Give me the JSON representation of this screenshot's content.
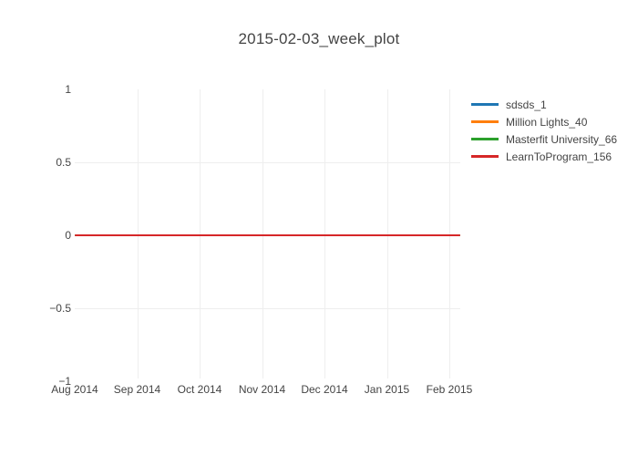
{
  "title": "2015-02-03_week_plot",
  "chart_data": {
    "type": "line",
    "title": "2015-02-03_week_plot",
    "xlabel": "",
    "ylabel": "",
    "x_ticks": [
      "Aug 2014",
      "Sep 2014",
      "Oct 2014",
      "Nov 2014",
      "Dec 2014",
      "Jan 2015",
      "Feb 2015"
    ],
    "y_ticks": [
      {
        "label": "1",
        "value": 1
      },
      {
        "label": "0.5",
        "value": 0.5
      },
      {
        "label": "0",
        "value": 0
      },
      {
        "label": "−0.5",
        "value": -0.5
      },
      {
        "label": "−1",
        "value": -1
      }
    ],
    "ylim": [
      -1,
      1
    ],
    "x_range": [
      "Aug 2014",
      "Feb 2015"
    ],
    "grid": true,
    "legend_position": "right",
    "series": [
      {
        "name": "sdsds_1",
        "color": "#1f77b4",
        "values": [
          0,
          0,
          0,
          0,
          0,
          0,
          0
        ]
      },
      {
        "name": "Million Lights_40",
        "color": "#ff7f0e",
        "values": [
          0,
          0,
          0,
          0,
          0,
          0,
          0
        ]
      },
      {
        "name": "Masterfit University_66",
        "color": "#2ca02c",
        "values": [
          0,
          0,
          0,
          0,
          0,
          0,
          0
        ]
      },
      {
        "name": "LearnToProgram_156",
        "color": "#d62728",
        "values": [
          0,
          0,
          0,
          0,
          0,
          0,
          0
        ]
      }
    ]
  },
  "colors": {
    "text": "#444444",
    "grid": "#eeeeee",
    "background": "#ffffff"
  }
}
